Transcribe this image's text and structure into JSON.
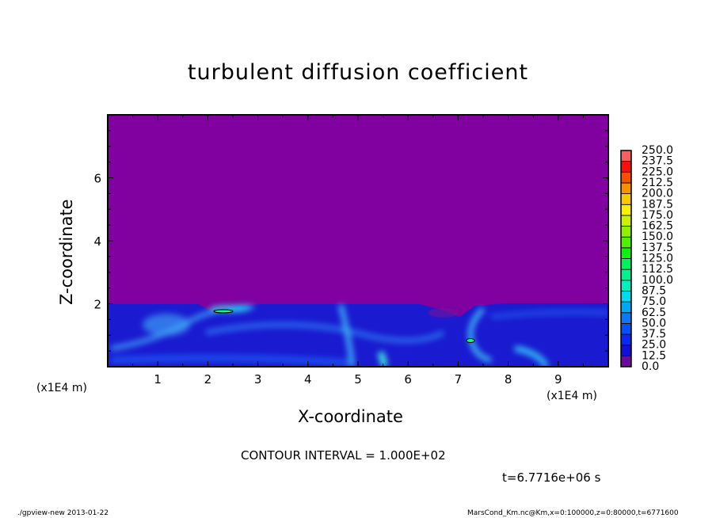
{
  "chart_data": {
    "type": "heatmap",
    "title": "turbulent diffusion coefficient",
    "xlabel": "X-coordinate",
    "ylabel": "Z-coordinate",
    "x_unit": "(x1E4 m)",
    "y_unit": "(x1E4 m)",
    "xlim": [
      0,
      10
    ],
    "ylim": [
      0,
      8
    ],
    "xticks": [
      "1",
      "2",
      "3",
      "4",
      "5",
      "6",
      "7",
      "8",
      "9"
    ],
    "yticks": [
      "2",
      "4",
      "6"
    ],
    "colorbar": {
      "levels": [
        "0.0",
        "12.5",
        "25.0",
        "37.5",
        "50.0",
        "62.5",
        "75.0",
        "87.5",
        "100.0",
        "112.5",
        "125.0",
        "137.5",
        "150.0",
        "162.5",
        "175.0",
        "187.5",
        "200.0",
        "212.5",
        "225.0",
        "237.5",
        "250.0"
      ],
      "colors": [
        "#6a0a9e",
        "#2a1ab0",
        "#1010d8",
        "#0a28f0",
        "#0a4ef8",
        "#0a78f8",
        "#00a8f8",
        "#00d8f0",
        "#00f0c0",
        "#00f090",
        "#00f060",
        "#10f010",
        "#50f000",
        "#90f000",
        "#c8f000",
        "#f8f000",
        "#f8c800",
        "#f89000",
        "#f85000",
        "#f81010",
        "#f86060",
        "#f89090"
      ]
    },
    "background_value_color": "#8000a0",
    "boundary_layer_top": 2.0,
    "contour_interval": "CONTOUR INTERVAL = 1.000E+02",
    "time_label": "t=6.7716e+06 s"
  },
  "footer": {
    "left": "./gpview-new   2013-01-22",
    "right": "MarsCond_Km.nc@Km,x=0:100000,z=0:80000,t=6771600"
  }
}
